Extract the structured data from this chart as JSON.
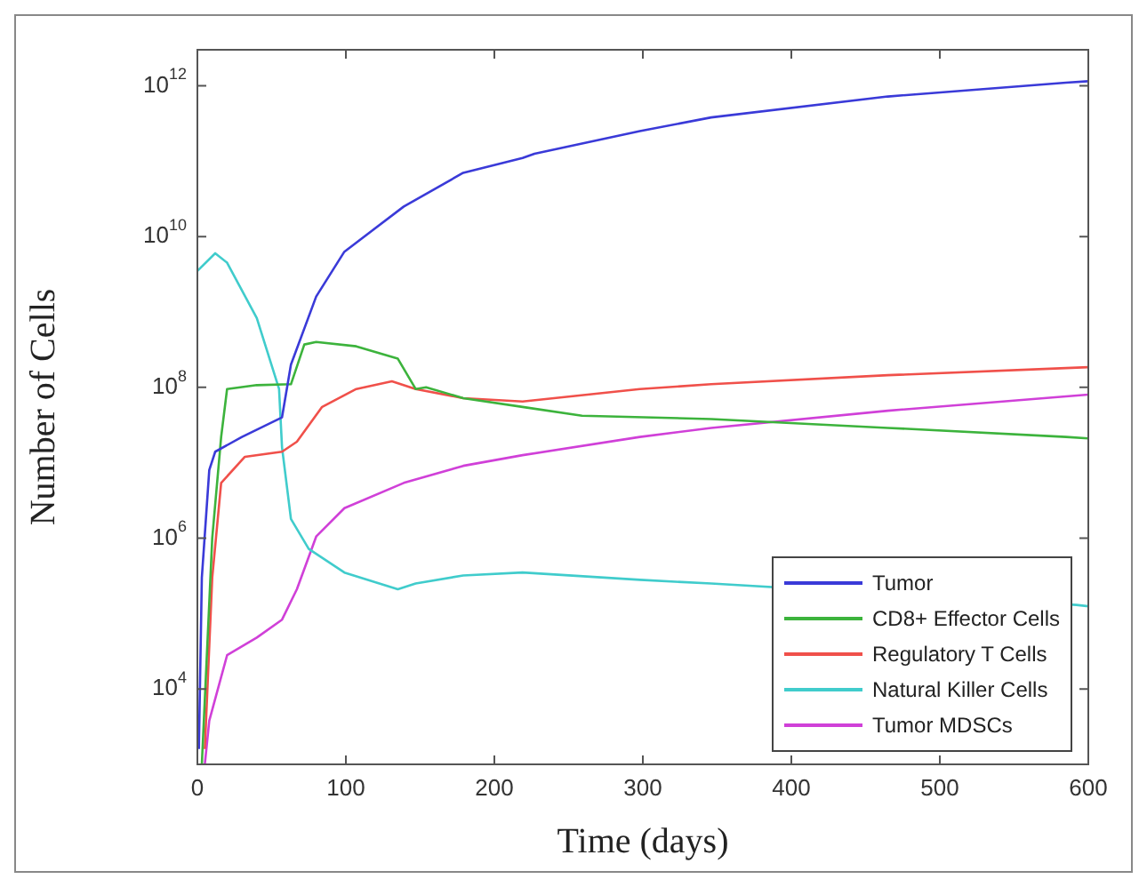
{
  "chart_data": {
    "type": "line",
    "xlabel": "Time (days)",
    "ylabel": "Number of Cells",
    "log": "y",
    "grid": false,
    "legend": "bottom right",
    "marker": "none",
    "line_style": "solid",
    "xlim": [
      0,
      600
    ],
    "xticks": [
      0,
      100,
      200,
      300,
      400,
      500,
      600
    ],
    "ylim": [
      1000,
      3000000000000.0
    ],
    "yticks": [
      {
        "value": 10000,
        "label": "10$^{4}$"
      },
      {
        "value": 1000000,
        "label": "10$^{6}$"
      },
      {
        "value": 100000000,
        "label": "10$^{8}$"
      },
      {
        "value": 10000000000,
        "label": "10$^{10}$"
      },
      {
        "value": 1000000000000,
        "label": "10$^{12}$"
      }
    ],
    "series": [
      {
        "name": "Tumor",
        "color": "#3a3ad8",
        "x": [
          1,
          3,
          8,
          12,
          30,
          57,
          63,
          80,
          99,
          139,
          179,
          219,
          227,
          298,
          346,
          465,
          585,
          600
        ],
        "values": [
          1600,
          300000,
          8000000,
          14000000,
          22000000,
          40000000,
          200000000,
          1600000000,
          6300000000,
          25000000000,
          70000000000,
          110000000000,
          125000000000,
          250000000000,
          380000000000,
          720000000000,
          1100000000000,
          1150000000000
        ]
      },
      {
        "name": "CD8+ Effector Cells",
        "color": "#3cb33c",
        "x": [
          3,
          10,
          16,
          20,
          40,
          63,
          72,
          80,
          107,
          135,
          147,
          154,
          179,
          219,
          259,
          346,
          465,
          585,
          600
        ],
        "values": [
          1000,
          1000000,
          22000000,
          95000000,
          107000000,
          110000000,
          370000000,
          400000000,
          350000000,
          240000000,
          95000000,
          100000000,
          72000000,
          55000000,
          42000000,
          38000000,
          29000000,
          22000000,
          21000000
        ]
      },
      {
        "name": "Regulatory T Cells",
        "color": "#f0504a",
        "x": [
          5,
          10,
          16,
          32,
          57,
          67,
          84,
          107,
          131,
          147,
          179,
          219,
          298,
          346,
          465,
          585,
          600
        ],
        "values": [
          1600,
          300000,
          5400000,
          12000000,
          14000000,
          19000000,
          55000000,
          95000000,
          120000000,
          95000000,
          72000000,
          65000000,
          95000000,
          110000000,
          145000000,
          180000000,
          185000000
        ]
      },
      {
        "name": "Natural Killer Cells",
        "color": "#40cccc",
        "x": [
          0,
          12,
          20,
          40,
          55,
          57,
          63,
          75,
          99,
          135,
          147,
          179,
          219,
          298,
          346,
          465,
          592,
          600
        ],
        "values": [
          3500000000,
          6000000000,
          4500000000,
          830000000,
          95000000,
          16000000,
          1800000,
          720000,
          350000,
          210000,
          250000,
          320000,
          350000,
          280000,
          250000,
          null,
          130000,
          125000
        ]
      },
      {
        "name": "Tumor MDSCs",
        "color": "#d040d8",
        "x": [
          5,
          8,
          20,
          40,
          57,
          67,
          80,
          99,
          139,
          179,
          219,
          298,
          346,
          465,
          585,
          600
        ],
        "values": [
          1000,
          3800,
          28000,
          48000,
          83000,
          210000,
          1050000,
          2500000,
          5400000,
          9100000,
          12600000,
          22000000,
          29000000,
          49000000,
          76000000,
          80000000
        ]
      }
    ]
  }
}
